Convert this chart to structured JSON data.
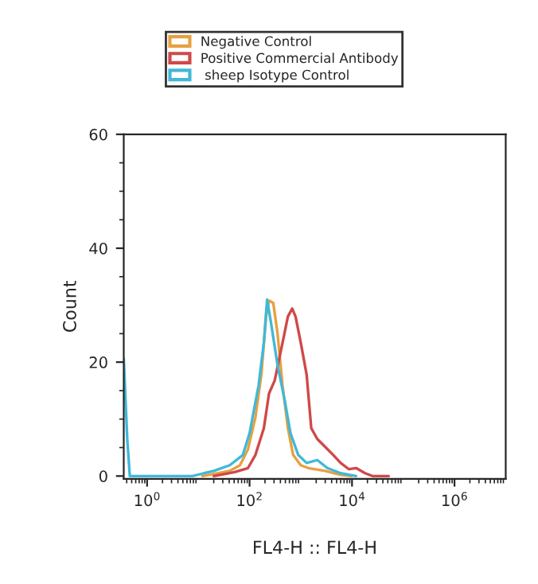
{
  "chart_data": {
    "type": "line",
    "xlabel": "FL4-H :: FL4-H",
    "ylabel": "Count",
    "log": "x",
    "xlim": [
      0.35,
      10000000
    ],
    "xticks": [
      {
        "value": 1,
        "label": "10$^{0}$"
      },
      {
        "value": 100,
        "label": "10$^{2}$"
      },
      {
        "value": 10000,
        "label": "10$^{4}$"
      },
      {
        "value": 1000000,
        "label": "10$^{6}$"
      }
    ],
    "ylim": [
      -0.5,
      60
    ],
    "yticks": [
      0,
      20,
      40,
      60
    ],
    "grid": false,
    "legend": "top",
    "marker": "none",
    "line_style": "solid",
    "series": [
      {
        "name": "Negative Control",
        "color": "#e8a040",
        "x": [
          12,
          41,
          65,
          93,
          130,
          170,
          210,
          240,
          290,
          350,
          440,
          560,
          710,
          1000,
          1400,
          3000,
          6000,
          9800
        ],
        "values": [
          0,
          0.9,
          1.9,
          4.7,
          10.3,
          17.8,
          28,
          30.8,
          30.4,
          25.2,
          15.9,
          8.4,
          3.7,
          1.9,
          1.4,
          0.9,
          0.2,
          0
        ]
      },
      {
        "name": "Positive Commercial Antibody",
        "color": "#d04848",
        "x": [
          20,
          51,
          93,
          130,
          190,
          240,
          310,
          440,
          560,
          680,
          790,
          1000,
          1300,
          1600,
          2100,
          3000,
          4300,
          6000,
          8700,
          12000,
          18000,
          25000,
          52000
        ],
        "values": [
          0,
          0.7,
          1.4,
          3.7,
          8.4,
          14.5,
          16.8,
          23.4,
          28,
          29.4,
          28,
          23.4,
          17.8,
          8.4,
          6.5,
          5.1,
          3.7,
          2.3,
          1.2,
          1.4,
          0.5,
          0,
          0
        ]
      },
      {
        "name": " sheep Isotype Control",
        "color": "#40b8d8",
        "x": [
          0.35,
          0.41,
          0.46,
          7.6,
          20,
          41,
          74,
          100,
          150,
          190,
          220,
          260,
          350,
          490,
          630,
          890,
          1300,
          2100,
          3300,
          6000,
          12000
        ],
        "values": [
          20.6,
          6.5,
          0,
          0,
          0.9,
          1.9,
          3.7,
          7.5,
          15.9,
          23.4,
          31,
          27.1,
          19.6,
          13.1,
          7.5,
          3.7,
          2.3,
          2.8,
          1.4,
          0.5,
          0
        ]
      }
    ]
  }
}
